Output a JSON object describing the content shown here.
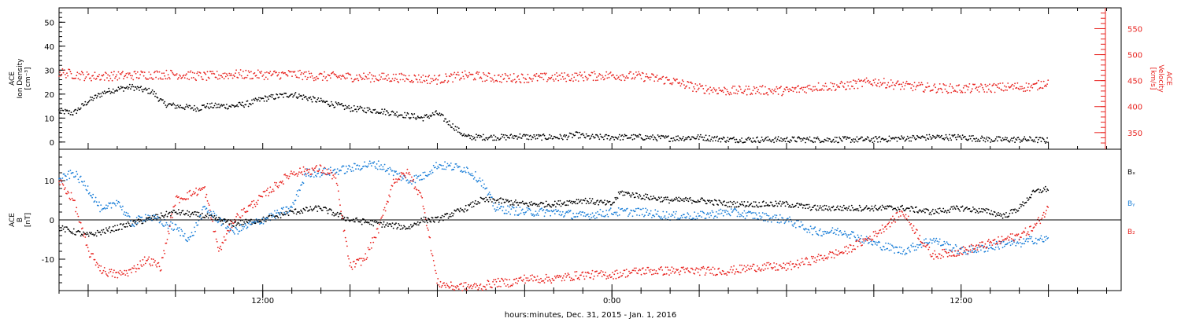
{
  "colors": {
    "density": "#000000",
    "velocity": "#e8231f",
    "bx": "#000000",
    "by": "#1b7fd8",
    "bz": "#e8231f",
    "frame": "#000000"
  },
  "x_axis": {
    "label": "hours:minutes, Dec. 31, 2015 - Jan.  1, 2016",
    "range_hours": [
      5,
      41.5
    ],
    "major_ticks": [
      {
        "hour": 12,
        "label": "12:00"
      },
      {
        "hour": 24,
        "label": "0:00"
      },
      {
        "hour": 36,
        "label": "12:00"
      }
    ]
  },
  "chart_data": [
    {
      "type": "scatter",
      "name": "top-panel",
      "ylabel_left": [
        "ACE",
        "Ion Density",
        "[cm⁻³]"
      ],
      "ylabel_right": [
        "ACE",
        "Velocity",
        "[km/s]"
      ],
      "ylim_left": [
        -3,
        56
      ],
      "ylim_right": [
        318,
        590
      ],
      "left_ticks": [
        0,
        10,
        20,
        30,
        40,
        50
      ],
      "right_ticks": [
        350,
        400,
        450,
        500,
        550
      ],
      "series": [
        {
          "key": "density",
          "axis": "left",
          "x": [
            5.0,
            5.5,
            6.0,
            6.6,
            7.0,
            7.5,
            7.8,
            8.2,
            8.6,
            9.0,
            9.8,
            10.0,
            11.0,
            11.5,
            12.0,
            13.0,
            14.0,
            15.0,
            16.0,
            17.0,
            17.5,
            18.0,
            19.0,
            20.0,
            20.4,
            20.8,
            21.2,
            21.8,
            22.3,
            22.8,
            23.2,
            23.8,
            24.5,
            25.0,
            26.0,
            27.0,
            28.0,
            29.0,
            30.0,
            31.0,
            32.0,
            33.0,
            34.0,
            35.0,
            36.0,
            37.0,
            38.0,
            38.5,
            39.0
          ],
          "y": [
            13,
            12,
            17,
            21,
            22,
            23,
            22,
            21,
            16,
            15,
            14,
            15,
            15,
            16,
            18,
            20,
            17,
            14,
            13,
            11,
            10,
            12,
            2,
            2,
            2,
            2.5,
            2,
            2,
            2,
            3,
            2,
            2,
            2,
            2,
            1.5,
            2,
            1,
            1,
            1,
            1,
            1,
            1,
            1.5,
            2,
            2,
            1,
            1,
            1,
            0.5
          ]
        },
        {
          "key": "velocity",
          "axis": "right",
          "x": [
            5.0,
            6.0,
            7.0,
            8.0,
            9.0,
            10.0,
            11.0,
            12.0,
            13.0,
            14.0,
            15.0,
            16.0,
            17.0,
            18.0,
            19.0,
            20.0,
            21.0,
            22.0,
            23.0,
            24.0,
            25.0,
            26.0,
            27.0,
            28.0,
            29.0,
            30.0,
            31.0,
            32.0,
            33.0,
            34.0,
            35.0,
            36.0,
            37.0,
            38.0,
            38.5,
            39.0
          ],
          "y": [
            466,
            458,
            459,
            461,
            462,
            458,
            462,
            461,
            462,
            458,
            457,
            456,
            455,
            452,
            460,
            455,
            455,
            456,
            458,
            460,
            458,
            450,
            435,
            430,
            432,
            430,
            438,
            440,
            448,
            440,
            436,
            434,
            436,
            438,
            438,
            448
          ]
        }
      ]
    },
    {
      "type": "scatter",
      "name": "bottom-panel",
      "ylabel_left": [
        "ACE",
        "B",
        "[nT]"
      ],
      "ylim": [
        -18,
        18
      ],
      "ticks": [
        -10,
        0,
        10
      ],
      "zero_line": true,
      "legend": [
        "Bₓ",
        "Bᵧ",
        "B₂"
      ],
      "legend_placement": "right",
      "series": [
        {
          "key": "bx",
          "x": [
            5.0,
            5.5,
            6.0,
            7.0,
            8.0,
            9.0,
            10.0,
            11.0,
            12.0,
            13.0,
            14.0,
            15.0,
            16.0,
            17.0,
            17.5,
            18.0,
            19.0,
            19.5,
            20.0,
            21.0,
            22.0,
            23.0,
            24.0,
            24.3,
            25.0,
            26.0,
            27.0,
            28.0,
            29.0,
            30.0,
            31.0,
            32.0,
            33.0,
            34.0,
            35.0,
            36.0,
            37.0,
            37.5,
            38.0,
            38.5,
            39.0
          ],
          "y": [
            -2,
            -3,
            -4,
            -2,
            0,
            2,
            1,
            -1,
            0,
            2,
            3,
            0,
            -1,
            -2,
            0,
            0,
            3,
            5,
            5,
            4,
            4,
            5,
            4,
            7,
            6,
            5,
            5,
            4,
            4,
            4,
            3,
            3,
            3,
            3,
            2,
            3,
            2,
            1,
            3,
            7,
            8
          ]
        },
        {
          "key": "by",
          "x": [
            5.0,
            5.5,
            6.0,
            6.5,
            7.0,
            7.5,
            8.0,
            9.0,
            9.5,
            10.0,
            11.0,
            12.0,
            13.0,
            13.5,
            14.0,
            15.0,
            15.5,
            16.0,
            16.5,
            17.0,
            17.5,
            18.0,
            19.0,
            19.5,
            20.0,
            21.0,
            22.0,
            23.0,
            24.0,
            25.0,
            26.0,
            27.0,
            28.0,
            29.0,
            30.0,
            31.0,
            32.0,
            33.0,
            34.0,
            35.0,
            36.0,
            37.0,
            37.5,
            38.0,
            38.5,
            39.0
          ],
          "y": [
            10,
            12,
            8,
            2,
            5,
            -1,
            1,
            -2,
            -5,
            3,
            -3,
            0,
            3,
            12,
            12,
            13,
            14,
            14,
            12,
            10,
            11,
            14,
            13,
            10,
            3,
            2,
            2,
            1,
            2,
            2,
            1,
            1,
            2,
            1,
            0,
            -3,
            -3,
            -6,
            -8,
            -5,
            -8,
            -7,
            -6,
            -6,
            -5,
            -5
          ]
        },
        {
          "key": "bz",
          "x": [
            5.0,
            5.5,
            6.0,
            6.5,
            7.0,
            7.5,
            8.0,
            8.5,
            9.0,
            10.0,
            10.5,
            11.0,
            11.5,
            12.0,
            13.0,
            14.0,
            14.5,
            15.0,
            15.5,
            16.0,
            16.5,
            17.0,
            17.5,
            18.0,
            18.5,
            19.0,
            19.5,
            20.0,
            20.5,
            21.0,
            22.0,
            23.0,
            24.0,
            25.0,
            26.0,
            27.0,
            28.0,
            29.0,
            30.0,
            31.0,
            32.0,
            33.0,
            34.0,
            35.0,
            36.0,
            37.0,
            38.0,
            38.5,
            39.0
          ],
          "y": [
            10,
            5,
            -8,
            -13,
            -14,
            -13,
            -10,
            -12,
            5,
            8,
            -8,
            0,
            3,
            6,
            12,
            13,
            11,
            -12,
            -10,
            -2,
            10,
            12,
            5,
            -16,
            -17,
            -17,
            -17,
            -16,
            -16,
            -15,
            -15,
            -14,
            -14,
            -13,
            -13,
            -13,
            -13,
            -12,
            -12,
            -10,
            -8,
            -4,
            2,
            -9,
            -8,
            -6,
            -4,
            -2,
            3
          ]
        }
      ]
    }
  ]
}
